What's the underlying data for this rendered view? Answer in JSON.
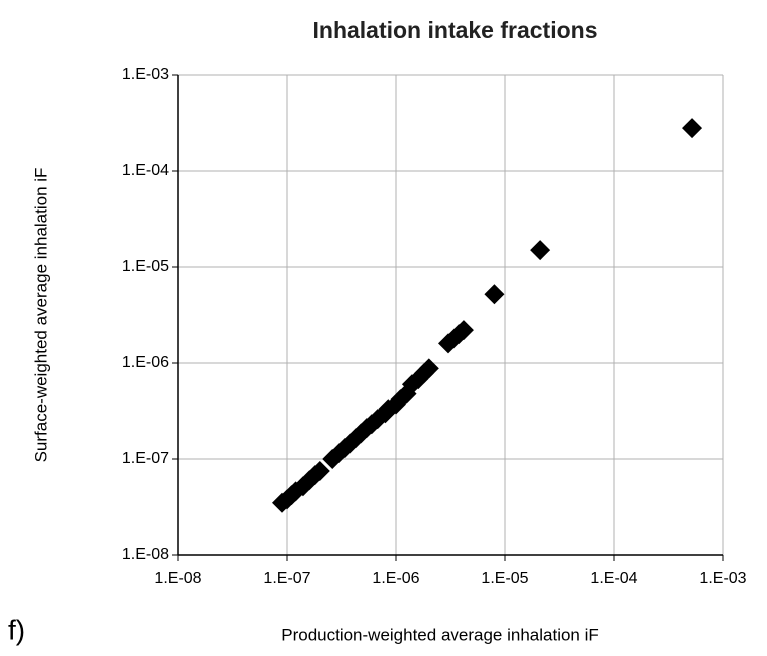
{
  "chart_data": {
    "type": "scatter",
    "title": "Inhalation intake fractions",
    "x_label": "Production-weighted average inhalation iF",
    "y_label": "Surface-weighted average inhalation iF",
    "annotation": "f)",
    "x_log": true,
    "y_log": true,
    "grid": true,
    "color": "#000000",
    "marker": "diamond",
    "xlim": [
      1e-08,
      0.001
    ],
    "ylim": [
      1e-08,
      0.001
    ],
    "xticks": [
      {
        "value": 1e-08,
        "label": "1.E-08"
      },
      {
        "value": 1e-07,
        "label": "1.E-07"
      },
      {
        "value": 1e-06,
        "label": "1.E-06"
      },
      {
        "value": 1e-05,
        "label": "1.E-05"
      },
      {
        "value": 0.0001,
        "label": "1.E-04"
      },
      {
        "value": 0.001,
        "label": "1.E-03"
      }
    ],
    "yticks": [
      {
        "value": 1e-08,
        "label": "1.E-08"
      },
      {
        "value": 1e-07,
        "label": "1.E-07"
      },
      {
        "value": 1e-06,
        "label": "1.E-06"
      },
      {
        "value": 1e-05,
        "label": "1.E-05"
      },
      {
        "value": 0.0001,
        "label": "1.E-04"
      },
      {
        "value": 0.001,
        "label": "1.E-03"
      }
    ],
    "x": [
      9e-08,
      1e-07,
      1.1e-07,
      1.2e-07,
      1.4e-07,
      1.6e-07,
      1.8e-07,
      2e-07,
      2.6e-07,
      3e-07,
      3.4e-07,
      3.8e-07,
      4.3e-07,
      4.8e-07,
      5.4e-07,
      6e-07,
      6.8e-07,
      8e-07,
      8.5e-07,
      1e-06,
      1.1e-06,
      1.25e-06,
      1.4e-06,
      1.6e-06,
      1.8e-06,
      2e-06,
      3e-06,
      3.4e-06,
      3.8e-06,
      4.2e-06,
      8e-06,
      2.1e-05,
      0.00052
    ],
    "y": [
      3.5e-08,
      3.8e-08,
      4.2e-08,
      4.6e-08,
      5.2e-08,
      6e-08,
      6.8e-08,
      7.5e-08,
      1e-07,
      1.15e-07,
      1.3e-07,
      1.45e-07,
      1.65e-07,
      1.85e-07,
      2.1e-07,
      2.3e-07,
      2.6e-07,
      3e-07,
      3.3e-07,
      3.7e-07,
      4.2e-07,
      4.8e-07,
      6e-07,
      6.8e-07,
      7.8e-07,
      8.8e-07,
      1.6e-06,
      1.8e-06,
      2e-06,
      2.2e-06,
      5.2e-06,
      1.5e-05,
      0.00028
    ]
  }
}
